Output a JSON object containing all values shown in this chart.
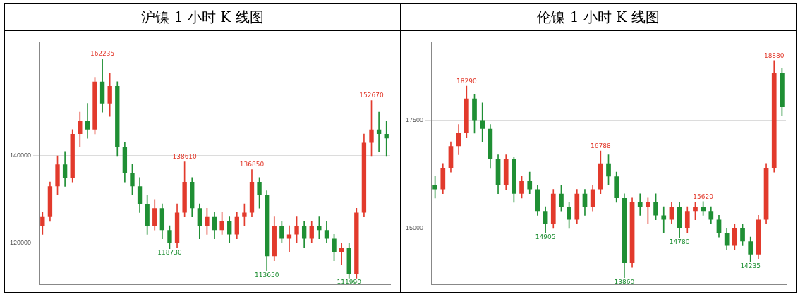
{
  "chart_data": [
    {
      "type": "candlestick",
      "title": "沪镍 1 小时 K 线图",
      "categories": [
        null,
        null,
        null,
        null,
        null,
        null,
        null,
        null,
        null,
        null,
        null,
        null,
        null,
        null,
        null,
        null,
        null,
        null,
        null,
        null,
        null,
        null,
        null,
        null,
        null,
        null,
        null,
        null,
        null,
        null,
        null,
        null,
        null,
        null,
        null,
        null,
        null,
        null,
        null,
        null,
        null,
        null,
        null,
        null,
        null,
        null,
        null
      ],
      "ohlc": [
        [
          124000,
          127000,
          122000,
          126000
        ],
        [
          126000,
          134000,
          125000,
          133000
        ],
        [
          133000,
          140000,
          131000,
          138000
        ],
        [
          138000,
          141000,
          133000,
          135000
        ],
        [
          135000,
          146000,
          134000,
          145000
        ],
        [
          145000,
          150000,
          142000,
          148000
        ],
        [
          148000,
          152000,
          144000,
          146000
        ],
        [
          146000,
          158000,
          145000,
          157000
        ],
        [
          157000,
          162235,
          150000,
          152000
        ],
        [
          152000,
          159000,
          149000,
          156000
        ],
        [
          156000,
          157000,
          140000,
          142000
        ],
        [
          142000,
          143000,
          134000,
          136000
        ],
        [
          136000,
          138000,
          131000,
          133000
        ],
        [
          133000,
          135000,
          127000,
          129000
        ],
        [
          129000,
          131000,
          122000,
          124000
        ],
        [
          124000,
          130000,
          123000,
          128000
        ],
        [
          128000,
          129000,
          121000,
          123000
        ],
        [
          123000,
          124000,
          118730,
          120000
        ],
        [
          120000,
          129000,
          119000,
          127000
        ],
        [
          127000,
          138610,
          126000,
          134000
        ],
        [
          134000,
          135000,
          126000,
          128000
        ],
        [
          128000,
          129000,
          121000,
          124000
        ],
        [
          124000,
          128000,
          122000,
          126000
        ],
        [
          126000,
          127000,
          121000,
          123000
        ],
        [
          123000,
          127000,
          122000,
          125000
        ],
        [
          125000,
          126000,
          120000,
          122000
        ],
        [
          122000,
          127000,
          121000,
          126000
        ],
        [
          126000,
          129000,
          124000,
          127000
        ],
        [
          127000,
          136850,
          126000,
          134000
        ],
        [
          134000,
          135000,
          128000,
          131000
        ],
        [
          131000,
          132000,
          113650,
          117000
        ],
        [
          117000,
          126000,
          116000,
          124000
        ],
        [
          124000,
          125000,
          120000,
          121000
        ],
        [
          121000,
          124000,
          118000,
          122000
        ],
        [
          122000,
          126000,
          120000,
          124000
        ],
        [
          124000,
          125000,
          119000,
          121000
        ],
        [
          121000,
          125000,
          120000,
          124000
        ],
        [
          124000,
          126000,
          121000,
          123000
        ],
        [
          123000,
          125000,
          120000,
          121000
        ],
        [
          121000,
          122000,
          116000,
          118000
        ],
        [
          118000,
          120000,
          115000,
          119000
        ],
        [
          119000,
          120000,
          111990,
          113000
        ],
        [
          113000,
          128000,
          112000,
          127000
        ],
        [
          127000,
          145000,
          126000,
          143000
        ],
        [
          143000,
          152670,
          140000,
          146000
        ],
        [
          146000,
          150000,
          141000,
          145000
        ],
        [
          145000,
          148000,
          140000,
          144000
        ]
      ],
      "ylim": [
        110500,
        166000
      ],
      "yticks": [
        120000,
        140000
      ],
      "grid": "y",
      "tick_labels": "y",
      "annotations": [
        {
          "text": "162235",
          "y": 162235
        },
        {
          "text": "138610",
          "y": 138610
        },
        {
          "text": "136850",
          "y": 136850
        },
        {
          "text": "118730",
          "y": 118730
        },
        {
          "text": "113650",
          "y": 113650
        },
        {
          "text": "111990",
          "y": 111990
        },
        {
          "text": "152670",
          "y": 152670
        }
      ]
    },
    {
      "type": "candlestick",
      "title": "伦镍 1 小时 K 线图",
      "categories": [
        null,
        null,
        null,
        null,
        null,
        null,
        null,
        null,
        null,
        null,
        null,
        null,
        null,
        null,
        null,
        null,
        null,
        null,
        null,
        null,
        null,
        null,
        null,
        null,
        null,
        null,
        null,
        null,
        null,
        null,
        null,
        null,
        null,
        null,
        null,
        null,
        null,
        null,
        null,
        null,
        null,
        null,
        null,
        null,
        null
      ],
      "ohlc": [
        [
          16000,
          16200,
          15700,
          15900
        ],
        [
          15900,
          16500,
          15800,
          16400
        ],
        [
          16400,
          17000,
          16300,
          16900
        ],
        [
          16900,
          17400,
          16700,
          17200
        ],
        [
          17200,
          18290,
          17100,
          18000
        ],
        [
          18000,
          18100,
          17200,
          17500
        ],
        [
          17500,
          17900,
          17000,
          17300
        ],
        [
          17300,
          17400,
          16400,
          16600
        ],
        [
          16600,
          16700,
          15800,
          16000
        ],
        [
          16000,
          16700,
          15900,
          16600
        ],
        [
          16600,
          16650,
          15600,
          15800
        ],
        [
          15800,
          16200,
          15700,
          16100
        ],
        [
          16100,
          16300,
          15800,
          15900
        ],
        [
          15900,
          16000,
          15300,
          15400
        ],
        [
          15400,
          15500,
          14905,
          15100
        ],
        [
          15100,
          15900,
          15000,
          15800
        ],
        [
          15800,
          16000,
          15400,
          15500
        ],
        [
          15500,
          15600,
          15000,
          15200
        ],
        [
          15200,
          15900,
          15100,
          15800
        ],
        [
          15800,
          15900,
          15300,
          15500
        ],
        [
          15500,
          16000,
          15400,
          15900
        ],
        [
          15900,
          16788,
          15800,
          16500
        ],
        [
          16500,
          16700,
          16000,
          16200
        ],
        [
          16200,
          16300,
          15600,
          15700
        ],
        [
          15700,
          15800,
          13860,
          14200
        ],
        [
          14200,
          15700,
          14100,
          15600
        ],
        [
          15600,
          15800,
          15300,
          15500
        ],
        [
          15500,
          15700,
          15100,
          15600
        ],
        [
          15600,
          15800,
          15200,
          15300
        ],
        [
          15300,
          15500,
          14900,
          15200
        ],
        [
          15200,
          15600,
          15100,
          15500
        ],
        [
          15500,
          15600,
          14780,
          15000
        ],
        [
          15000,
          15500,
          14900,
          15400
        ],
        [
          15400,
          15600,
          15200,
          15500
        ],
        [
          15500,
          15620,
          15300,
          15400
        ],
        [
          15400,
          15500,
          15100,
          15200
        ],
        [
          15200,
          15300,
          14800,
          14900
        ],
        [
          14900,
          15000,
          14500,
          14600
        ],
        [
          14600,
          15100,
          14500,
          15000
        ],
        [
          15000,
          15100,
          14600,
          14700
        ],
        [
          14700,
          14800,
          14235,
          14400
        ],
        [
          14400,
          15300,
          14300,
          15200
        ],
        [
          15200,
          16500,
          15100,
          16400
        ],
        [
          16400,
          18880,
          16300,
          18600
        ],
        [
          18600,
          18700,
          17600,
          17800
        ]
      ],
      "ylim": [
        13700,
        19300
      ],
      "yticks": [
        15000,
        17500
      ],
      "grid": "y",
      "tick_labels": "y",
      "annotations": [
        {
          "text": "18290",
          "y": 18290
        },
        {
          "text": "16788",
          "y": 16788
        },
        {
          "text": "14905",
          "y": 14905
        },
        {
          "text": "13860",
          "y": 13860
        },
        {
          "text": "14780",
          "y": 14780
        },
        {
          "text": "15620",
          "y": 15620
        },
        {
          "text": "14235",
          "y": 14235
        },
        {
          "text": "18880",
          "y": 18880
        }
      ]
    }
  ]
}
